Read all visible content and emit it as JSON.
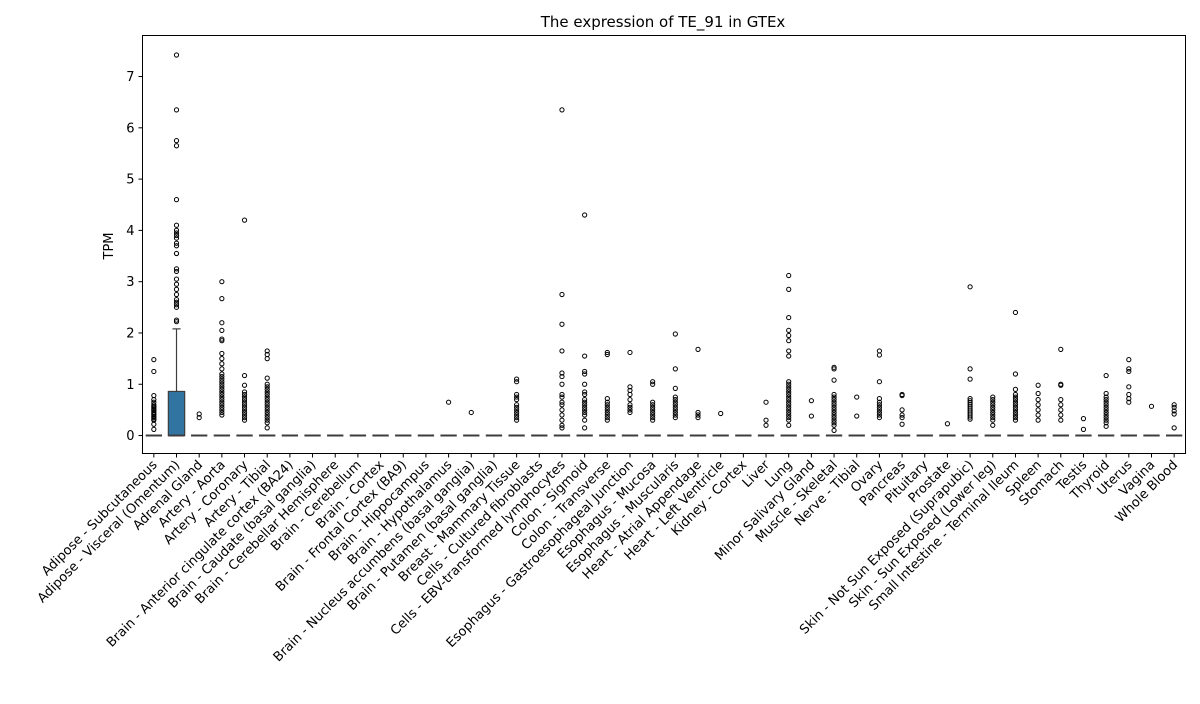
{
  "chart_data": {
    "type": "box",
    "title": "The expression of TE_91 in GTEx",
    "xlabel": "",
    "ylabel": "TPM",
    "ylim": [
      -0.35,
      7.8
    ],
    "yticks": [
      0,
      1,
      2,
      3,
      4,
      5,
      6,
      7
    ],
    "box_color": "#3274a1",
    "categories": [
      "Adipose - Subcutaneous",
      "Adipose - Visceral (Omentum)",
      "Adrenal Gland",
      "Artery - Aorta",
      "Artery - Coronary",
      "Artery - Tibial",
      "Brain - Anterior cingulate cortex (BA24)",
      "Brain - Caudate (basal ganglia)",
      "Brain - Cerebellar Hemisphere",
      "Brain - Cerebellum",
      "Brain - Cortex",
      "Brain - Frontal Cortex (BA9)",
      "Brain - Hippocampus",
      "Brain - Hypothalamus",
      "Brain - Nucleus accumbens (basal ganglia)",
      "Brain - Putamen (basal ganglia)",
      "Breast - Mammary Tissue",
      "Cells - Cultured fibroblasts",
      "Cells - EBV-transformed lymphocytes",
      "Colon - Sigmoid",
      "Colon - Transverse",
      "Esophagus - Gastroesophageal Junction",
      "Esophagus - Mucosa",
      "Esophagus - Muscularis",
      "Heart - Atrial Appendage",
      "Heart - Left Ventricle",
      "Kidney - Cortex",
      "Liver",
      "Lung",
      "Minor Salivary Gland",
      "Muscle - Skeletal",
      "Nerve - Tibial",
      "Ovary",
      "Pancreas",
      "Pituitary",
      "Prostate",
      "Skin - Not Sun Exposed (Suprapubic)",
      "Skin - Sun Exposed (Lower leg)",
      "Small Intestine - Terminal Ileum",
      "Spleen",
      "Stomach",
      "Testis",
      "Thyroid",
      "Uterus",
      "Vagina",
      "Whole Blood"
    ],
    "boxes": [
      {
        "q1": 0,
        "median": 0,
        "q3": 0,
        "whisker_low": 0,
        "whisker_high": 0,
        "outliers": [
          1.48,
          1.25,
          0.78,
          0.7,
          0.65,
          0.6,
          0.57,
          0.55,
          0.52,
          0.5,
          0.48,
          0.45,
          0.42,
          0.4,
          0.37,
          0.35,
          0.32,
          0.3,
          0.22,
          0.12
        ]
      },
      {
        "q1": 0,
        "median": 0,
        "q3": 0.86,
        "whisker_low": 0,
        "whisker_high": 2.08,
        "outliers": [
          7.42,
          6.35,
          5.75,
          5.65,
          4.6,
          4.1,
          4.0,
          3.95,
          3.9,
          3.85,
          3.75,
          3.7,
          3.55,
          3.25,
          3.2,
          3.05,
          2.95,
          2.85,
          2.75,
          2.65,
          2.6,
          2.55,
          2.5,
          2.25,
          2.22
        ]
      },
      {
        "q1": 0,
        "median": 0,
        "q3": 0,
        "whisker_low": 0,
        "whisker_high": 0,
        "outliers": [
          0.42,
          0.35
        ]
      },
      {
        "q1": 0,
        "median": 0,
        "q3": 0,
        "whisker_low": 0,
        "whisker_high": 0,
        "outliers": [
          3.0,
          2.67,
          2.2,
          2.05,
          1.88,
          1.85,
          1.6,
          1.5,
          1.4,
          1.3,
          1.2,
          1.15,
          1.1,
          1.05,
          1.0,
          0.95,
          0.9,
          0.85,
          0.8,
          0.75,
          0.7,
          0.65,
          0.6,
          0.55,
          0.5,
          0.45,
          0.4
        ]
      },
      {
        "q1": 0,
        "median": 0,
        "q3": 0,
        "whisker_low": 0,
        "whisker_high": 0,
        "outliers": [
          4.2,
          1.17,
          0.98,
          0.85,
          0.8,
          0.75,
          0.7,
          0.65,
          0.6,
          0.55,
          0.5,
          0.45,
          0.4,
          0.35,
          0.3
        ]
      },
      {
        "q1": 0,
        "median": 0,
        "q3": 0,
        "whisker_low": 0,
        "whisker_high": 0,
        "outliers": [
          1.65,
          1.58,
          1.5,
          1.12,
          1.0,
          0.95,
          0.9,
          0.85,
          0.8,
          0.75,
          0.7,
          0.65,
          0.6,
          0.55,
          0.5,
          0.45,
          0.4,
          0.35,
          0.3,
          0.25,
          0.15
        ]
      },
      {
        "q1": 0,
        "median": 0,
        "q3": 0,
        "whisker_low": 0,
        "whisker_high": 0,
        "outliers": []
      },
      {
        "q1": 0,
        "median": 0,
        "q3": 0,
        "whisker_low": 0,
        "whisker_high": 0,
        "outliers": []
      },
      {
        "q1": 0,
        "median": 0,
        "q3": 0,
        "whisker_low": 0,
        "whisker_high": 0,
        "outliers": []
      },
      {
        "q1": 0,
        "median": 0,
        "q3": 0,
        "whisker_low": 0,
        "whisker_high": 0,
        "outliers": []
      },
      {
        "q1": 0,
        "median": 0,
        "q3": 0,
        "whisker_low": 0,
        "whisker_high": 0,
        "outliers": []
      },
      {
        "q1": 0,
        "median": 0,
        "q3": 0,
        "whisker_low": 0,
        "whisker_high": 0,
        "outliers": []
      },
      {
        "q1": 0,
        "median": 0,
        "q3": 0,
        "whisker_low": 0,
        "whisker_high": 0,
        "outliers": []
      },
      {
        "q1": 0,
        "median": 0,
        "q3": 0,
        "whisker_low": 0,
        "whisker_high": 0,
        "outliers": [
          0.65
        ]
      },
      {
        "q1": 0,
        "median": 0,
        "q3": 0,
        "whisker_low": 0,
        "whisker_high": 0,
        "outliers": [
          0.45
        ]
      },
      {
        "q1": 0,
        "median": 0,
        "q3": 0,
        "whisker_low": 0,
        "whisker_high": 0,
        "outliers": []
      },
      {
        "q1": 0,
        "median": 0,
        "q3": 0,
        "whisker_low": 0,
        "whisker_high": 0,
        "outliers": [
          1.1,
          1.05,
          0.8,
          0.75,
          0.7,
          0.6,
          0.55,
          0.5,
          0.45,
          0.4,
          0.35,
          0.3
        ]
      },
      {
        "q1": 0,
        "median": 0,
        "q3": 0,
        "whisker_low": 0,
        "whisker_high": 0,
        "outliers": []
      },
      {
        "q1": 0,
        "median": 0,
        "q3": 0,
        "whisker_low": 0,
        "whisker_high": 0,
        "outliers": [
          6.35,
          2.75,
          2.17,
          1.65,
          1.22,
          1.15,
          1.0,
          0.8,
          0.75,
          0.65,
          0.6,
          0.5,
          0.4,
          0.3,
          0.2,
          0.15
        ]
      },
      {
        "q1": 0,
        "median": 0,
        "q3": 0,
        "whisker_low": 0,
        "whisker_high": 0,
        "outliers": [
          4.3,
          1.55,
          1.25,
          1.2,
          1.0,
          0.85,
          0.8,
          0.7,
          0.65,
          0.6,
          0.55,
          0.5,
          0.45,
          0.4,
          0.3,
          0.15
        ]
      },
      {
        "q1": 0,
        "median": 0,
        "q3": 0,
        "whisker_low": 0,
        "whisker_high": 0,
        "outliers": [
          1.62,
          1.58,
          0.72,
          0.65,
          0.6,
          0.55,
          0.5,
          0.45,
          0.4,
          0.35,
          0.3
        ]
      },
      {
        "q1": 0,
        "median": 0,
        "q3": 0,
        "whisker_low": 0,
        "whisker_high": 0,
        "outliers": [
          1.62,
          0.95,
          0.88,
          0.8,
          0.7,
          0.6,
          0.55,
          0.5,
          0.45
        ]
      },
      {
        "q1": 0,
        "median": 0,
        "q3": 0,
        "whisker_low": 0,
        "whisker_high": 0,
        "outliers": [
          1.05,
          1.0,
          0.65,
          0.6,
          0.55,
          0.5,
          0.45,
          0.4,
          0.35,
          0.3
        ]
      },
      {
        "q1": 0,
        "median": 0,
        "q3": 0,
        "whisker_low": 0,
        "whisker_high": 0,
        "outliers": [
          1.98,
          1.3,
          0.92,
          0.75,
          0.7,
          0.65,
          0.6,
          0.55,
          0.5,
          0.45,
          0.4,
          0.35
        ]
      },
      {
        "q1": 0,
        "median": 0,
        "q3": 0,
        "whisker_low": 0,
        "whisker_high": 0,
        "outliers": [
          1.68,
          0.45,
          0.4,
          0.35
        ]
      },
      {
        "q1": 0,
        "median": 0,
        "q3": 0,
        "whisker_low": 0,
        "whisker_high": 0,
        "outliers": [
          0.43
        ]
      },
      {
        "q1": 0,
        "median": 0,
        "q3": 0,
        "whisker_low": 0,
        "whisker_high": 0,
        "outliers": []
      },
      {
        "q1": 0,
        "median": 0,
        "q3": 0,
        "whisker_low": 0,
        "whisker_high": 0,
        "outliers": [
          0.65,
          0.3,
          0.2
        ]
      },
      {
        "q1": 0,
        "median": 0,
        "q3": 0,
        "whisker_low": 0,
        "whisker_high": 0,
        "outliers": [
          3.12,
          2.85,
          2.3,
          2.05,
          1.95,
          1.85,
          1.65,
          1.55,
          1.05,
          1.0,
          0.95,
          0.9,
          0.85,
          0.8,
          0.75,
          0.7,
          0.65,
          0.6,
          0.55,
          0.5,
          0.45,
          0.4,
          0.35,
          0.3,
          0.2
        ]
      },
      {
        "q1": 0,
        "median": 0,
        "q3": 0,
        "whisker_low": 0,
        "whisker_high": 0,
        "outliers": [
          0.68,
          0.38
        ]
      },
      {
        "q1": 0,
        "median": 0,
        "q3": 0,
        "whisker_low": 0,
        "whisker_high": 0,
        "outliers": [
          1.33,
          1.3,
          1.08,
          0.8,
          0.75,
          0.7,
          0.65,
          0.6,
          0.55,
          0.5,
          0.45,
          0.4,
          0.35,
          0.3,
          0.25,
          0.2,
          0.1
        ]
      },
      {
        "q1": 0,
        "median": 0,
        "q3": 0,
        "whisker_low": 0,
        "whisker_high": 0,
        "outliers": [
          0.75,
          0.38
        ]
      },
      {
        "q1": 0,
        "median": 0,
        "q3": 0,
        "whisker_low": 0,
        "whisker_high": 0,
        "outliers": [
          1.65,
          1.57,
          1.05,
          0.72,
          0.65,
          0.6,
          0.55,
          0.5,
          0.45,
          0.4,
          0.35
        ]
      },
      {
        "q1": 0,
        "median": 0,
        "q3": 0,
        "whisker_low": 0,
        "whisker_high": 0,
        "outliers": [
          0.8,
          0.78,
          0.5,
          0.4,
          0.35,
          0.22
        ]
      },
      {
        "q1": 0,
        "median": 0,
        "q3": 0,
        "whisker_low": 0,
        "whisker_high": 0,
        "outliers": []
      },
      {
        "q1": 0,
        "median": 0,
        "q3": 0,
        "whisker_low": 0,
        "whisker_high": 0,
        "outliers": [
          0.23
        ]
      },
      {
        "q1": 0,
        "median": 0,
        "q3": 0,
        "whisker_low": 0,
        "whisker_high": 0,
        "outliers": [
          2.9,
          1.3,
          1.1,
          0.72,
          0.68,
          0.64,
          0.6,
          0.56,
          0.52,
          0.48,
          0.44,
          0.4,
          0.36,
          0.32
        ]
      },
      {
        "q1": 0,
        "median": 0,
        "q3": 0,
        "whisker_low": 0,
        "whisker_high": 0,
        "outliers": [
          0.75,
          0.7,
          0.65,
          0.6,
          0.55,
          0.5,
          0.45,
          0.4,
          0.35,
          0.3,
          0.2
        ]
      },
      {
        "q1": 0,
        "median": 0,
        "q3": 0,
        "whisker_low": 0,
        "whisker_high": 0,
        "outliers": [
          2.4,
          1.2,
          0.9,
          0.8,
          0.75,
          0.7,
          0.65,
          0.6,
          0.55,
          0.5,
          0.45,
          0.4,
          0.35,
          0.3
        ]
      },
      {
        "q1": 0,
        "median": 0,
        "q3": 0,
        "whisker_low": 0,
        "whisker_high": 0,
        "outliers": [
          0.98,
          0.82,
          0.7,
          0.6,
          0.5,
          0.4,
          0.3
        ]
      },
      {
        "q1": 0,
        "median": 0,
        "q3": 0,
        "whisker_low": 0,
        "whisker_high": 0,
        "outliers": [
          1.68,
          1.0,
          0.98,
          0.7,
          0.6,
          0.5,
          0.4,
          0.3
        ]
      },
      {
        "q1": 0,
        "median": 0,
        "q3": 0,
        "whisker_low": 0,
        "whisker_high": 0,
        "outliers": [
          0.33,
          0.12
        ]
      },
      {
        "q1": 0,
        "median": 0,
        "q3": 0,
        "whisker_low": 0,
        "whisker_high": 0,
        "outliers": [
          1.17,
          0.82,
          0.75,
          0.7,
          0.65,
          0.6,
          0.55,
          0.5,
          0.45,
          0.4,
          0.35,
          0.3,
          0.25,
          0.18
        ]
      },
      {
        "q1": 0,
        "median": 0,
        "q3": 0,
        "whisker_low": 0,
        "whisker_high": 0,
        "outliers": [
          1.48,
          1.3,
          1.25,
          0.95,
          0.8,
          0.72,
          0.65
        ]
      },
      {
        "q1": 0,
        "median": 0,
        "q3": 0,
        "whisker_low": 0,
        "whisker_high": 0,
        "outliers": [
          0.57
        ]
      },
      {
        "q1": 0,
        "median": 0,
        "q3": 0,
        "whisker_low": 0,
        "whisker_high": 0,
        "outliers": [
          0.6,
          0.55,
          0.48,
          0.42,
          0.15
        ]
      }
    ]
  }
}
